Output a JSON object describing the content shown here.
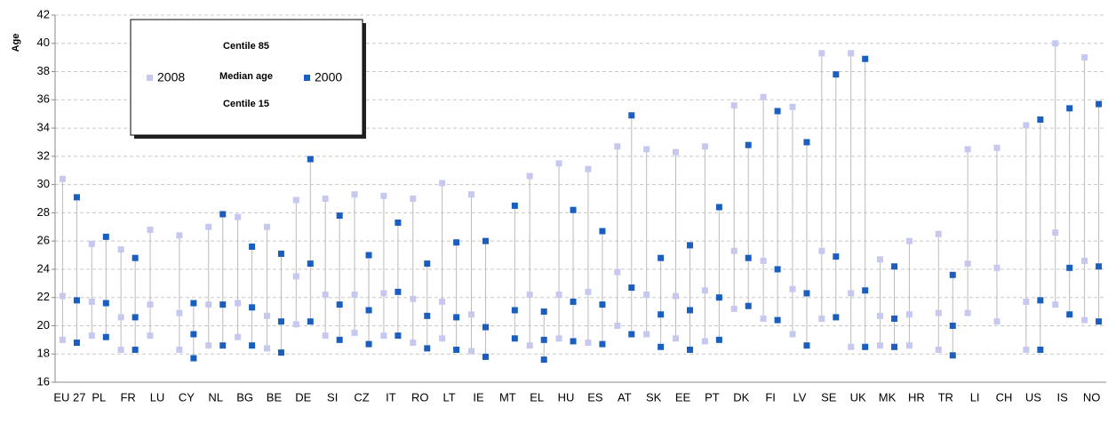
{
  "chart_data": {
    "type": "range_dot",
    "y_label": "Age",
    "categories": [
      "EU 27",
      "PL",
      "FR",
      "LU",
      "CY",
      "NL",
      "BG",
      "BE",
      "DE",
      "SI",
      "CZ",
      "IT",
      "RO",
      "LT",
      "IE",
      "MT",
      "EL",
      "HU",
      "ES",
      "AT",
      "SK",
      "EE",
      "PT",
      "DK",
      "FI",
      "LV",
      "SE",
      "UK",
      "MK",
      "HR",
      "TR",
      "LI",
      "CH",
      "US",
      "IS",
      "NO"
    ],
    "legend_labels": [
      "Centile 85",
      "Median age",
      "Centile 15"
    ],
    "series": [
      {
        "name": "2008",
        "color": "#c6c8f0",
        "centile_85": [
          30.4,
          25.8,
          25.4,
          26.8,
          26.4,
          27.0,
          27.7,
          27.0,
          28.9,
          29.0,
          29.3,
          29.2,
          29.0,
          30.1,
          29.3,
          null,
          30.6,
          31.5,
          31.1,
          32.7,
          32.5,
          32.3,
          32.7,
          35.6,
          36.2,
          35.5,
          39.3,
          39.3,
          24.7,
          26.0,
          26.5,
          32.5,
          32.6,
          34.2,
          40.0,
          39.0
        ],
        "median": [
          22.1,
          21.7,
          20.6,
          21.5,
          20.9,
          21.5,
          21.6,
          20.7,
          23.5,
          22.2,
          22.2,
          22.3,
          21.9,
          21.7,
          20.8,
          null,
          22.2,
          22.2,
          22.4,
          23.8,
          22.2,
          22.1,
          22.5,
          25.3,
          24.6,
          22.6,
          25.3,
          22.3,
          20.7,
          20.8,
          20.9,
          24.4,
          24.1,
          21.7,
          26.6,
          24.6
        ],
        "centile_15": [
          19.0,
          19.3,
          18.3,
          19.3,
          18.3,
          18.6,
          19.2,
          18.4,
          20.1,
          19.3,
          19.5,
          19.3,
          18.8,
          19.1,
          18.2,
          null,
          18.6,
          19.1,
          18.8,
          20.0,
          19.4,
          19.1,
          18.9,
          21.2,
          20.5,
          19.4,
          20.5,
          18.5,
          18.6,
          18.6,
          18.3,
          20.9,
          20.3,
          18.3,
          21.5,
          20.4
        ]
      },
      {
        "name": "2000",
        "color": "#1a5fbf",
        "centile_85": [
          29.1,
          26.3,
          24.8,
          null,
          21.6,
          27.9,
          25.6,
          25.1,
          31.8,
          27.8,
          25.0,
          27.3,
          24.4,
          25.9,
          26.0,
          28.5,
          21.0,
          28.2,
          26.7,
          34.9,
          24.8,
          25.7,
          28.4,
          32.8,
          35.2,
          33.0,
          37.8,
          38.9,
          24.2,
          null,
          23.6,
          null,
          null,
          34.6,
          35.4,
          35.7
        ],
        "median": [
          21.8,
          21.6,
          20.6,
          null,
          19.4,
          21.5,
          21.3,
          20.3,
          24.4,
          21.5,
          21.1,
          22.4,
          20.7,
          20.6,
          19.9,
          21.1,
          19.0,
          21.7,
          21.5,
          22.7,
          20.8,
          21.1,
          22.0,
          24.8,
          24.0,
          22.3,
          24.9,
          22.5,
          20.5,
          null,
          20.0,
          null,
          null,
          21.8,
          24.1,
          24.2
        ],
        "centile_15": [
          18.8,
          19.2,
          18.3,
          null,
          17.7,
          18.6,
          18.6,
          18.1,
          20.3,
          19.0,
          18.7,
          19.3,
          18.4,
          18.3,
          17.8,
          19.1,
          17.6,
          18.9,
          18.7,
          19.4,
          18.5,
          18.3,
          19.0,
          21.4,
          20.4,
          18.6,
          20.6,
          18.5,
          18.5,
          null,
          17.9,
          null,
          null,
          18.3,
          20.8,
          20.3
        ]
      }
    ],
    "ylim": [
      16,
      42
    ],
    "yticks": [
      16,
      18,
      20,
      22,
      24,
      26,
      28,
      30,
      32,
      34,
      36,
      38,
      40,
      42
    ],
    "grid": true
  }
}
